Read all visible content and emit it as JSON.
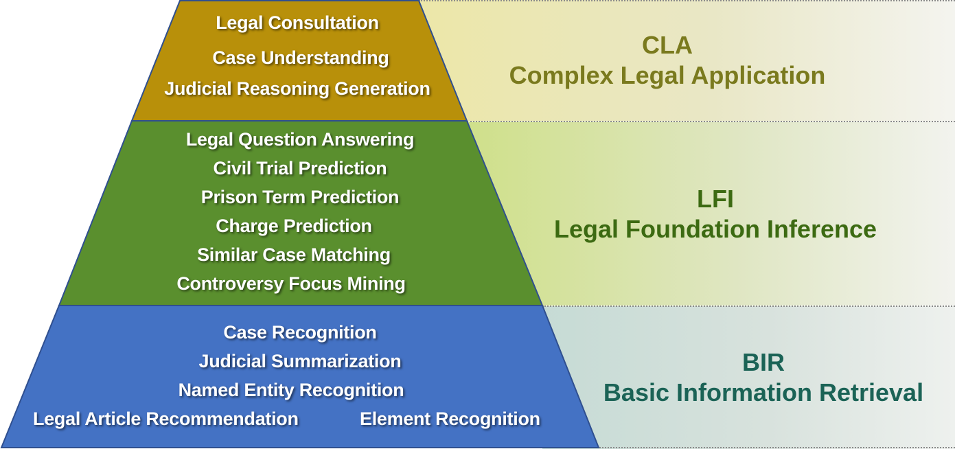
{
  "levels": {
    "cla": {
      "abbr": "CLA",
      "name": "Complex Legal Application",
      "color": "#b8900a",
      "tasks": [
        "Legal Consultation",
        "Case Understanding",
        "Judicial Reasoning Generation"
      ]
    },
    "lfi": {
      "abbr": "LFI",
      "name": "Legal Foundation Inference",
      "color": "#5a8f2e",
      "tasks": [
        "Legal Question Answering",
        "Civil Trial Prediction",
        "Prison Term Prediction",
        "Charge Prediction",
        "Similar Case Matching",
        "Controversy Focus Mining"
      ]
    },
    "bir": {
      "abbr": "BIR",
      "name": "Basic Information Retrieval",
      "color": "#4472c4",
      "tasks": [
        "Case Recognition",
        "Judicial Summarization",
        "Named Entity Recognition",
        "Legal Article Recommendation",
        "Element Recognition"
      ]
    }
  }
}
